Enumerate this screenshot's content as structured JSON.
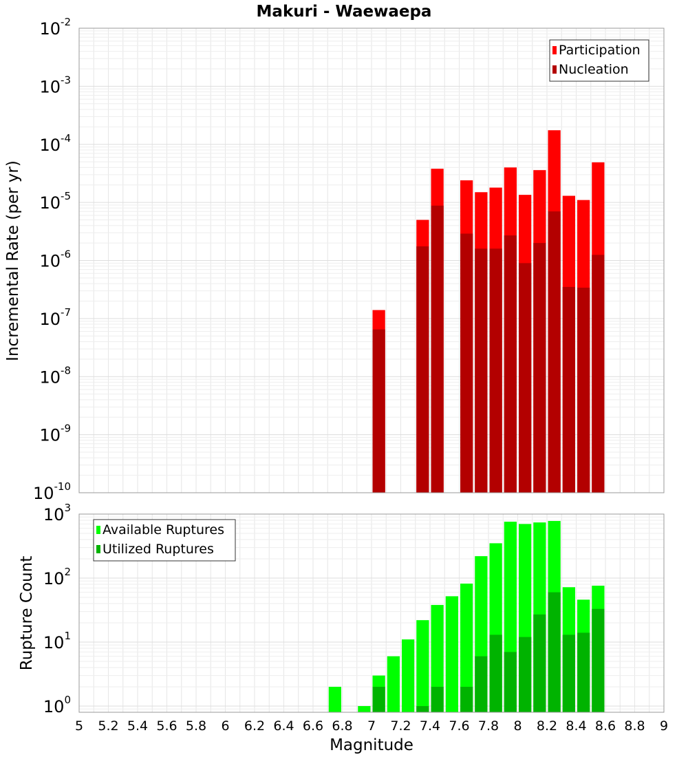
{
  "chart_data": [
    {
      "type": "bar",
      "stacking": "overlaid",
      "title": "Makuri - Waewaepa",
      "ylabel": "Incremental Rate (per yr)",
      "xlabel": "",
      "yscale": "log",
      "xlim": [
        5,
        9
      ],
      "ylim": [
        1e-10,
        0.01
      ],
      "y_tick_exponents": [
        "-10",
        "-9",
        "-8",
        "-7",
        "-6",
        "-5",
        "-4",
        "-3",
        "-2"
      ],
      "y_tick_base": "10",
      "grid": true,
      "legend_position": "top-right",
      "x": [
        7.05,
        7.35,
        7.45,
        7.65,
        7.75,
        7.85,
        7.95,
        8.05,
        8.15,
        8.25,
        8.35,
        8.45,
        8.55
      ],
      "series": [
        {
          "name": "Participation",
          "color": "#ff0000",
          "values": [
            1.4e-07,
            5e-06,
            3.8e-05,
            2.4e-05,
            1.5e-05,
            1.8e-05,
            4e-05,
            1.35e-05,
            3.6e-05,
            0.000175,
            1.3e-05,
            1.1e-05,
            4.9e-05
          ]
        },
        {
          "name": "Nucleation",
          "color": "#b30000",
          "values": [
            6.5e-08,
            1.75e-06,
            8.8e-06,
            2.9e-06,
            1.6e-06,
            1.6e-06,
            2.7e-06,
            9e-07,
            2e-06,
            7e-06,
            3.5e-07,
            3.4e-07,
            1.25e-06
          ]
        }
      ]
    },
    {
      "type": "bar",
      "stacking": "overlaid",
      "title": "",
      "ylabel": "Rupture Count",
      "xlabel": "Magnitude",
      "yscale": "log",
      "xlim": [
        5,
        9
      ],
      "ylim": [
        0.8,
        1000
      ],
      "y_tick_exponents": [
        "0",
        "1",
        "2",
        "3"
      ],
      "y_tick_base": "10",
      "x_ticks": [
        "5",
        "5.2",
        "5.4",
        "5.6",
        "5.8",
        "6",
        "6.2",
        "6.4",
        "6.6",
        "6.8",
        "7",
        "7.2",
        "7.4",
        "7.6",
        "7.8",
        "8",
        "8.2",
        "8.4",
        "8.6",
        "8.8",
        "9"
      ],
      "grid": true,
      "legend_position": "top-left",
      "x": [
        6.75,
        6.95,
        7.05,
        7.15,
        7.25,
        7.35,
        7.45,
        7.55,
        7.65,
        7.75,
        7.85,
        7.95,
        8.05,
        8.15,
        8.25,
        8.35,
        8.45,
        8.55
      ],
      "series": [
        {
          "name": "Available Ruptures",
          "color": "#00ff00",
          "values": [
            2,
            1,
            3,
            6,
            11,
            22,
            38,
            52,
            82,
            220,
            350,
            760,
            700,
            740,
            780,
            72,
            46,
            76
          ]
        },
        {
          "name": "Utilized Ruptures",
          "color": "#00b300",
          "values": [
            0,
            0,
            2,
            0,
            0,
            1,
            2,
            0,
            2,
            6,
            13,
            7,
            12,
            27,
            60,
            13,
            14,
            33
          ]
        }
      ]
    }
  ]
}
